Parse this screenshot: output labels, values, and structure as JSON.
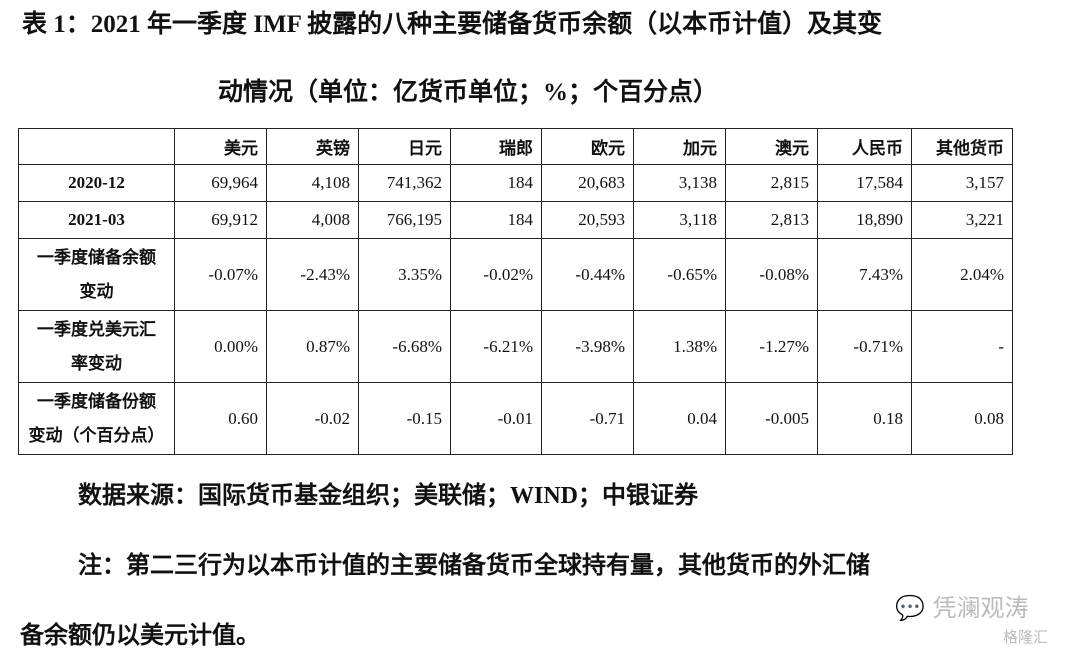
{
  "title": {
    "line1": "表 1：2021 年一季度 IMF 披露的八种主要储备货币余额（以本币计值）及其变",
    "line2": "动情况（单位：亿货币单位；%；个百分点）"
  },
  "table": {
    "columns": [
      "",
      "美元",
      "英镑",
      "日元",
      "瑞郎",
      "欧元",
      "加元",
      "澳元",
      "人民币",
      "其他货币"
    ],
    "rows": [
      {
        "label": [
          "2020-12"
        ],
        "values": [
          "69,964",
          "4,108",
          "741,362",
          "184",
          "20,683",
          "3,138",
          "2,815",
          "17,584",
          "3,157"
        ]
      },
      {
        "label": [
          "2021-03"
        ],
        "values": [
          "69,912",
          "4,008",
          "766,195",
          "184",
          "20,593",
          "3,118",
          "2,813",
          "18,890",
          "3,221"
        ]
      },
      {
        "label": [
          "一季度储备余额",
          "变动"
        ],
        "values": [
          "-0.07%",
          "-2.43%",
          "3.35%",
          "-0.02%",
          "-0.44%",
          "-0.65%",
          "-0.08%",
          "7.43%",
          "2.04%"
        ]
      },
      {
        "label": [
          "一季度兑美元汇",
          "率变动"
        ],
        "values": [
          "0.00%",
          "0.87%",
          "-6.68%",
          "-6.21%",
          "-3.98%",
          "1.38%",
          "-1.27%",
          "-0.71%",
          "-"
        ]
      },
      {
        "label": [
          "一季度储备份额",
          "变动（个百分点）"
        ],
        "values": [
          "0.60",
          "-0.02",
          "-0.15",
          "-0.01",
          "-0.71",
          "0.04",
          "-0.005",
          "0.18",
          "0.08"
        ]
      }
    ]
  },
  "source": "数据来源：国际货币基金组织；美联储；WIND；中银证券",
  "note": {
    "line1": "注：第二三行为以本币计值的主要储备货币全球持有量，其他货币的外汇储",
    "line2": "备余额仍以美元计值。"
  },
  "watermark": {
    "wechat": "凭澜观涛",
    "brand": "格隆汇"
  }
}
